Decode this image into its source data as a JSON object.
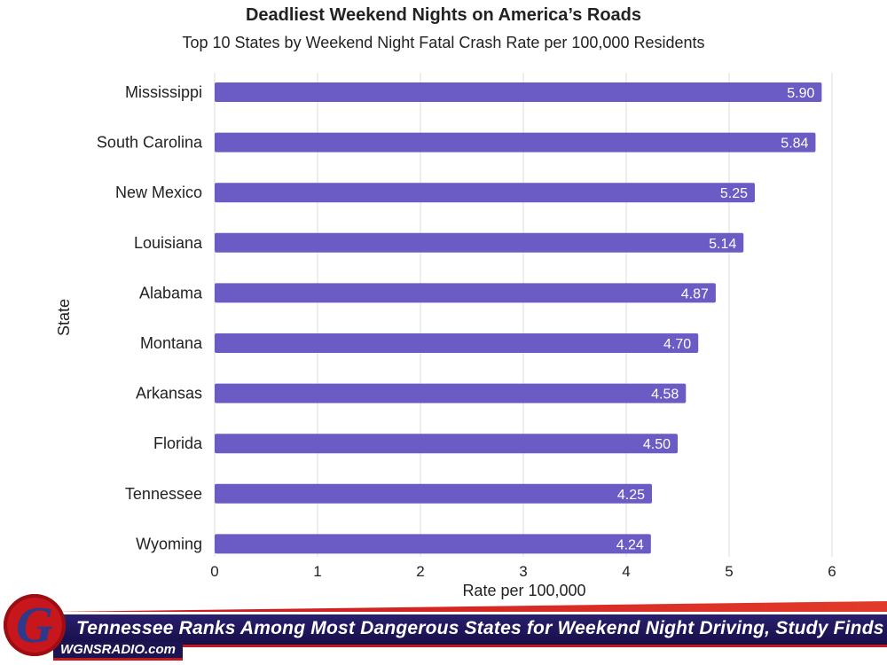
{
  "chart_data": {
    "type": "bar",
    "orientation": "horizontal",
    "title": "Deadliest Weekend Nights on America’s Roads",
    "subtitle": "Top 10 States by Weekend Night Fatal Crash Rate per 100,000 Residents",
    "ylabel": "State",
    "xlabel": "Rate per 100,000",
    "categories": [
      "Mississippi",
      "South Carolina",
      "New Mexico",
      "Louisiana",
      "Alabama",
      "Montana",
      "Arkansas",
      "Florida",
      "Tennessee",
      "Wyoming"
    ],
    "values": [
      5.9,
      5.84,
      5.25,
      5.14,
      4.87,
      4.7,
      4.58,
      4.5,
      4.25,
      4.24
    ],
    "data_labels": [
      "5.90",
      "5.84",
      "5.25",
      "5.14",
      "4.87",
      "4.70",
      "4.58",
      "4.50",
      "4.25",
      "4.24"
    ],
    "xlim": [
      0,
      6
    ],
    "xticks": [
      0,
      1,
      2,
      3,
      4,
      5,
      6
    ],
    "grid": "vertical",
    "bar_color": "#6a5cc4"
  },
  "banner": {
    "headline": "Tennessee Ranks Among Most Dangerous States for Weekend Night Driving, Study Finds",
    "site": "WGNSRADIO.com",
    "logo_letter": "G",
    "colors": {
      "navy": "#1b1450",
      "red": "#c7161c"
    }
  }
}
